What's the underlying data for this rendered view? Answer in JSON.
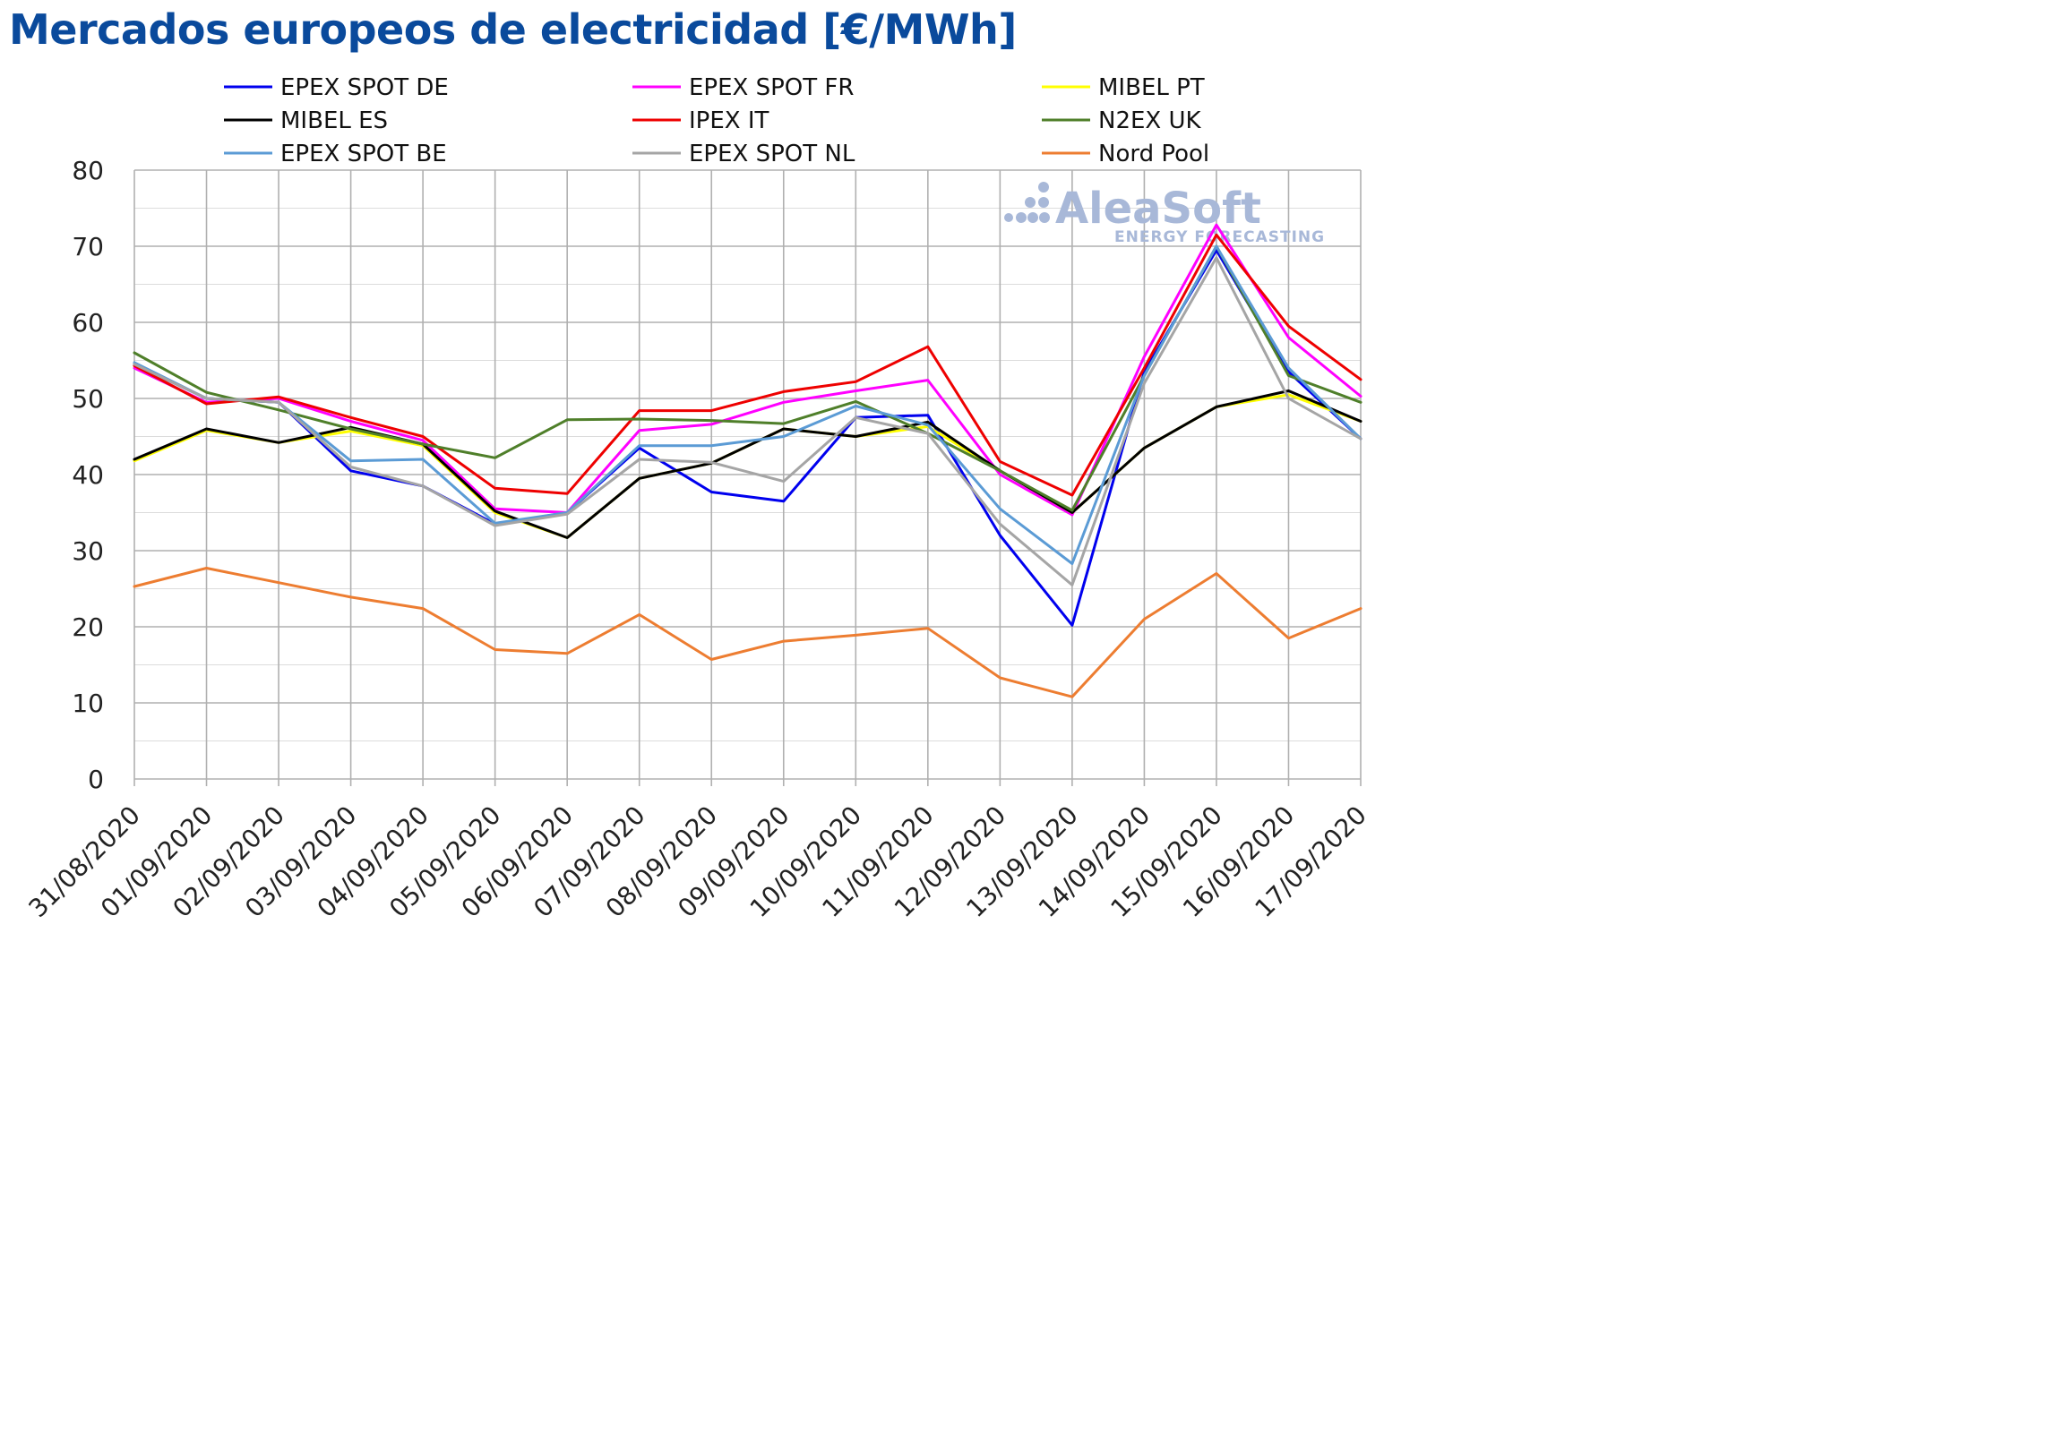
{
  "chart_data": {
    "type": "line",
    "title": "Mercados europeos de electricidad [€/MWh]",
    "xlabel": "",
    "ylabel": "",
    "ylim": [
      0,
      80
    ],
    "yticks": [
      0,
      10,
      20,
      30,
      40,
      50,
      60,
      70,
      80
    ],
    "grid": true,
    "legend_position": "top",
    "categories": [
      "31/08/2020",
      "01/09/2020",
      "02/09/2020",
      "03/09/2020",
      "04/09/2020",
      "05/09/2020",
      "06/09/2020",
      "07/09/2020",
      "08/09/2020",
      "09/09/2020",
      "10/09/2020",
      "11/09/2020",
      "12/09/2020",
      "13/09/2020",
      "14/09/2020",
      "15/09/2020",
      "16/09/2020",
      "17/09/2020"
    ],
    "series": [
      {
        "name": "EPEX SPOT DE",
        "color": "#0000ee",
        "values": [
          54.5,
          50.0,
          49.5,
          40.5,
          38.5,
          33.5,
          35.0,
          43.5,
          37.7,
          36.5,
          47.5,
          47.8,
          32.0,
          20.2,
          53.5,
          69.5,
          53.5,
          44.7
        ]
      },
      {
        "name": "EPEX SPOT FR",
        "color": "#ff00ff",
        "values": [
          54.0,
          49.5,
          50.0,
          47.0,
          44.5,
          35.5,
          35.0,
          45.8,
          46.6,
          49.5,
          51.0,
          52.4,
          40.0,
          34.7,
          55.5,
          72.8,
          58.0,
          50.3
        ]
      },
      {
        "name": "MIBEL PT",
        "color": "#ffff00",
        "values": [
          41.8,
          45.8,
          44.2,
          45.7,
          43.8,
          35.0,
          31.7,
          39.5,
          41.5,
          46.0,
          45.0,
          46.3,
          40.5,
          35.0,
          43.5,
          48.9,
          50.5,
          47.0
        ]
      },
      {
        "name": "MIBEL ES",
        "color": "#000000",
        "values": [
          42.0,
          46.0,
          44.2,
          46.2,
          44.0,
          35.2,
          31.7,
          39.5,
          41.5,
          46.0,
          45.0,
          46.9,
          40.5,
          35.0,
          43.5,
          48.9,
          51.0,
          47.0
        ]
      },
      {
        "name": "IPEX IT",
        "color": "#ee0000",
        "values": [
          54.3,
          49.3,
          50.2,
          47.5,
          45.0,
          38.2,
          37.5,
          48.4,
          48.4,
          50.9,
          52.2,
          56.8,
          41.7,
          37.3,
          54.0,
          71.5,
          59.5,
          52.5
        ]
      },
      {
        "name": "N2EX UK",
        "color": "#4f7f2a",
        "values": [
          56.0,
          50.8,
          48.5,
          46.0,
          44.0,
          42.2,
          47.2,
          47.3,
          47.1,
          46.7,
          49.6,
          45.4,
          40.5,
          35.3,
          53.0,
          70.0,
          53.0,
          49.5
        ]
      },
      {
        "name": "EPEX SPOT BE",
        "color": "#5b9bd5",
        "values": [
          54.7,
          50.0,
          49.5,
          41.8,
          42.0,
          33.6,
          35.0,
          43.8,
          43.8,
          45.0,
          49.0,
          46.5,
          35.5,
          28.3,
          53.0,
          70.0,
          54.0,
          44.7
        ]
      },
      {
        "name": "EPEX SPOT NL",
        "color": "#a5a5a5",
        "values": [
          54.5,
          50.0,
          49.5,
          41.0,
          38.5,
          33.3,
          34.8,
          42.0,
          41.6,
          39.1,
          47.5,
          45.4,
          33.5,
          25.5,
          52.0,
          68.5,
          50.0,
          44.7
        ]
      },
      {
        "name": "Nord Pool",
        "color": "#ed7d31",
        "values": [
          25.3,
          27.7,
          25.8,
          23.9,
          22.4,
          17.0,
          16.5,
          21.6,
          15.7,
          18.1,
          18.9,
          19.8,
          13.3,
          10.8,
          21.0,
          27.0,
          18.5,
          22.4
        ]
      }
    ]
  },
  "watermark": {
    "brand": "AleaSoft",
    "tagline": "ENERGY FORECASTING",
    "color": "#a8b8d8"
  }
}
